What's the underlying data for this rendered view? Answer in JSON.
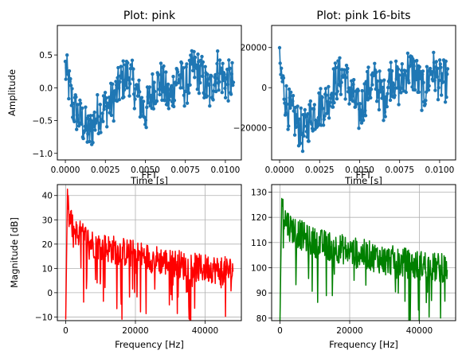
{
  "chart_data": [
    {
      "type": "line",
      "title": "Plot: pink",
      "xlabel": "Time [s]",
      "ylabel": "Amplitude",
      "xlim": [
        -0.0005,
        0.011
      ],
      "ylim": [
        -1.1,
        0.95
      ],
      "xticks": [
        0.0,
        0.0025,
        0.005,
        0.0075,
        0.01
      ],
      "xtick_labels": [
        "0.0000",
        "0.0025",
        "0.0050",
        "0.0075",
        "0.0100"
      ],
      "yticks": [
        -1.0,
        -0.5,
        0.0,
        0.5
      ],
      "ytick_labels": [
        "−1.0",
        "−0.5",
        "0.0",
        "0.5"
      ],
      "grid": false,
      "marker": "circle",
      "series": [
        {
          "color": "#1f77b4",
          "x": [
            0.0,
            0.0005,
            0.001,
            0.0015,
            0.002,
            0.0025,
            0.003,
            0.0035,
            0.004,
            0.0045,
            0.005,
            0.0055,
            0.006,
            0.0065,
            0.007,
            0.0075,
            0.008,
            0.0085,
            0.009,
            0.0095,
            0.01,
            0.0105
          ],
          "values": [
            0.3,
            -0.3,
            -0.5,
            -0.7,
            -0.4,
            -0.3,
            -0.2,
            0.1,
            0.2,
            -0.1,
            -0.4,
            0.0,
            0.1,
            -0.2,
            0.2,
            0.0,
            0.3,
            0.2,
            -0.1,
            0.3,
            0.1,
            0.1
          ]
        }
      ]
    },
    {
      "type": "line",
      "title": "Plot: pink 16-bits",
      "xlabel": "Time [s]",
      "ylabel": "",
      "xlim": [
        -0.0005,
        0.011
      ],
      "ylim": [
        -36000,
        31000
      ],
      "xticks": [
        0.0,
        0.0025,
        0.005,
        0.0075,
        0.01
      ],
      "xtick_labels": [
        "0.0000",
        "0.0025",
        "0.0050",
        "0.0075",
        "0.0100"
      ],
      "yticks": [
        -20000,
        0,
        20000
      ],
      "ytick_labels": [
        "−20000",
        "0",
        "20000"
      ],
      "grid": false,
      "marker": "circle",
      "series": [
        {
          "color": "#1f77b4",
          "x": [
            0.0,
            0.0005,
            0.001,
            0.0015,
            0.002,
            0.0025,
            0.003,
            0.0035,
            0.004,
            0.0045,
            0.005,
            0.0055,
            0.006,
            0.0065,
            0.007,
            0.0075,
            0.008,
            0.0085,
            0.009,
            0.0095,
            0.01,
            0.0105
          ],
          "values": [
            9800,
            -9800,
            -16400,
            -22900,
            -13100,
            -9800,
            -6500,
            3300,
            6500,
            -3300,
            -13100,
            0,
            3300,
            -6500,
            6500,
            0,
            9800,
            6500,
            -3300,
            9800,
            3300,
            3300
          ]
        }
      ]
    },
    {
      "type": "line",
      "title": "FFT",
      "xlabel": "Frequency [Hz]",
      "ylabel": "Magnitude [dB]",
      "xlim": [
        -2400,
        50400
      ],
      "ylim": [
        -11.5,
        44.5
      ],
      "xticks": [
        0,
        20000,
        40000
      ],
      "xtick_labels": [
        "0",
        "20000",
        "40000"
      ],
      "yticks": [
        -10,
        0,
        10,
        20,
        30,
        40
      ],
      "ytick_labels": [
        "−10",
        "0",
        "10",
        "20",
        "30",
        "40"
      ],
      "grid": true,
      "series": [
        {
          "color": "#ff0000",
          "x": [
            0,
            500,
            1000,
            2000,
            3000,
            4000,
            6000,
            8000,
            10000,
            13000,
            16000,
            19000,
            22000,
            25000,
            28000,
            30000,
            32000,
            34000,
            36000,
            38000,
            40000,
            42000,
            44000,
            46000,
            48000
          ],
          "values": [
            -11,
            38,
            30,
            27,
            25,
            24,
            22,
            20,
            19,
            18,
            17,
            16,
            15,
            14,
            13,
            12,
            12,
            11,
            11,
            10,
            10,
            10,
            9,
            9,
            9
          ]
        }
      ]
    },
    {
      "type": "line",
      "title": "FFT",
      "xlabel": "Frequency [Hz]",
      "ylabel": "",
      "xlim": [
        -2400,
        50400
      ],
      "ylim": [
        79,
        133
      ],
      "xticks": [
        0,
        20000,
        40000
      ],
      "xtick_labels": [
        "0",
        "20000",
        "40000"
      ],
      "yticks": [
        80,
        90,
        100,
        110,
        120,
        130
      ],
      "ytick_labels": [
        "80",
        "90",
        "100",
        "110",
        "120",
        "130"
      ],
      "grid": true,
      "series": [
        {
          "color": "#008000",
          "x": [
            0,
            500,
            1000,
            2000,
            3000,
            4000,
            6000,
            8000,
            10000,
            13000,
            16000,
            19000,
            22000,
            25000,
            28000,
            30000,
            32000,
            34000,
            36000,
            38000,
            40000,
            42000,
            44000,
            46000,
            48000
          ],
          "values": [
            79,
            129,
            121,
            118,
            116,
            115,
            113,
            111,
            110,
            109,
            108,
            107,
            106,
            105,
            104,
            103,
            103,
            102,
            102,
            101,
            101,
            101,
            100,
            100,
            100
          ]
        }
      ]
    }
  ]
}
